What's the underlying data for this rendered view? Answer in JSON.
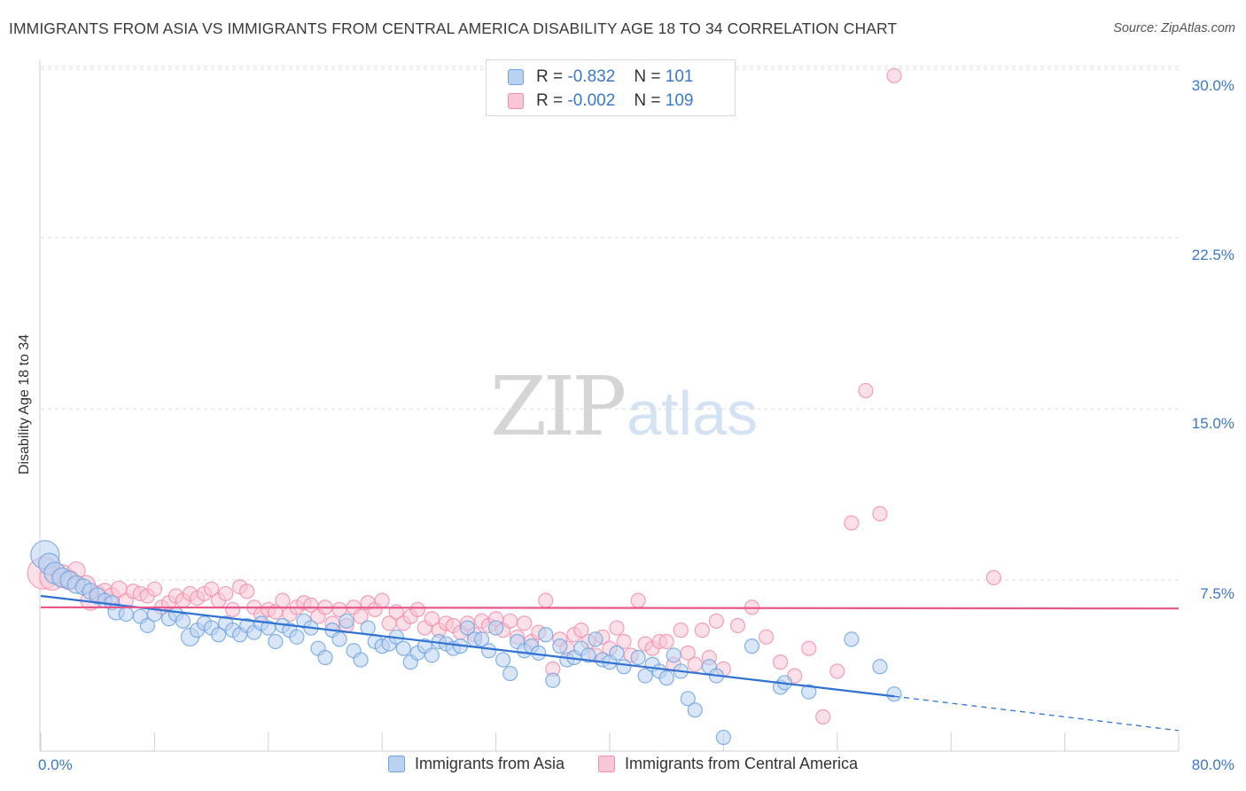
{
  "title": "IMMIGRANTS FROM ASIA VS IMMIGRANTS FROM CENTRAL AMERICA DISABILITY AGE 18 TO 34 CORRELATION CHART",
  "source": "Source: ZipAtlas.com",
  "watermark": {
    "zip": "ZIP",
    "atlas": "atlas"
  },
  "legend_box": {
    "rows": [
      {
        "r_label": "R = ",
        "r_value": "-0.832",
        "n_label": "N = ",
        "n_value": "101"
      },
      {
        "r_label": "R = ",
        "r_value": "-0.002",
        "n_label": "N = ",
        "n_value": "109"
      }
    ]
  },
  "bottom_legend": [
    "Immigrants from Asia",
    "Immigrants from Central America"
  ],
  "colors": {
    "blue": "#6fa3e0",
    "blue_fill": "#b9d2f1",
    "pink": "#f28ead",
    "pink_fill": "#f8c7d6",
    "blue_line": "#2f72d3",
    "pink_line": "#e8578a",
    "tick": "#3b78c8"
  },
  "chart_data": {
    "type": "scatter",
    "ylabel": "Disability Age 18 to 34",
    "xlim": [
      0,
      80
    ],
    "ylim": [
      0,
      31
    ],
    "x_tick_labels": [
      "0.0%",
      "80.0%"
    ],
    "y_ticks": [
      7.5,
      15.0,
      22.5,
      30.0
    ],
    "y_tick_labels": [
      "7.5%",
      "15.0%",
      "22.5%",
      "30.0%"
    ],
    "grid": true,
    "series": [
      {
        "name": "Immigrants from Asia",
        "r": -0.832,
        "n": 101,
        "trend": {
          "x0": 0,
          "y0": 6.8,
          "x1": 60,
          "y1": 2.4,
          "dash_to_x": 80,
          "dash_to_y": 0.9
        },
        "points": [
          [
            0.3,
            8.6,
            16
          ],
          [
            0.6,
            8.2,
            12
          ],
          [
            1.0,
            7.8,
            12
          ],
          [
            1.5,
            7.6,
            11
          ],
          [
            2.0,
            7.5,
            10
          ],
          [
            2.5,
            7.3,
            10
          ],
          [
            3.0,
            7.2,
            9
          ],
          [
            3.5,
            7.0,
            9
          ],
          [
            4.0,
            6.8,
            9
          ],
          [
            4.5,
            6.6,
            8
          ],
          [
            5.0,
            6.5,
            8
          ],
          [
            5.3,
            6.1,
            9
          ],
          [
            6.0,
            6.0,
            8
          ],
          [
            7.0,
            5.9,
            8
          ],
          [
            7.5,
            5.5,
            8
          ],
          [
            8.0,
            6.0,
            8
          ],
          [
            9.0,
            5.8,
            8
          ],
          [
            9.5,
            6.0,
            8
          ],
          [
            10.0,
            5.7,
            8
          ],
          [
            10.5,
            5.0,
            10
          ],
          [
            11.0,
            5.3,
            8
          ],
          [
            11.5,
            5.6,
            8
          ],
          [
            12.0,
            5.4,
            8
          ],
          [
            12.5,
            5.1,
            8
          ],
          [
            13.0,
            5.6,
            8
          ],
          [
            13.5,
            5.3,
            8
          ],
          [
            14.0,
            5.1,
            8
          ],
          [
            14.5,
            5.5,
            8
          ],
          [
            15.0,
            5.2,
            8
          ],
          [
            15.5,
            5.6,
            8
          ],
          [
            16.0,
            5.4,
            8
          ],
          [
            16.5,
            4.8,
            8
          ],
          [
            17.0,
            5.5,
            8
          ],
          [
            17.5,
            5.3,
            8
          ],
          [
            18.0,
            5.0,
            8
          ],
          [
            18.5,
            5.7,
            8
          ],
          [
            19.0,
            5.4,
            8
          ],
          [
            19.5,
            4.5,
            8
          ],
          [
            20.0,
            4.1,
            8
          ],
          [
            20.5,
            5.3,
            8
          ],
          [
            21.0,
            4.9,
            8
          ],
          [
            21.5,
            5.7,
            8
          ],
          [
            22.0,
            4.4,
            8
          ],
          [
            22.5,
            4.0,
            8
          ],
          [
            23.0,
            5.4,
            8
          ],
          [
            23.5,
            4.8,
            8
          ],
          [
            24.0,
            4.6,
            8
          ],
          [
            24.5,
            4.7,
            8
          ],
          [
            25.0,
            5.0,
            8
          ],
          [
            25.5,
            4.5,
            8
          ],
          [
            26.0,
            3.9,
            8
          ],
          [
            26.5,
            4.3,
            8
          ],
          [
            27.0,
            4.6,
            8
          ],
          [
            27.5,
            4.2,
            8
          ],
          [
            28.0,
            4.8,
            8
          ],
          [
            28.5,
            4.7,
            8
          ],
          [
            29.0,
            4.5,
            8
          ],
          [
            29.5,
            4.6,
            8
          ],
          [
            30.0,
            5.4,
            8
          ],
          [
            30.5,
            4.9,
            8
          ],
          [
            31.0,
            4.9,
            8
          ],
          [
            31.5,
            4.4,
            8
          ],
          [
            32.0,
            5.4,
            8
          ],
          [
            32.5,
            4.0,
            8
          ],
          [
            33.0,
            3.4,
            8
          ],
          [
            33.5,
            4.8,
            8
          ],
          [
            34.0,
            4.4,
            8
          ],
          [
            34.5,
            4.6,
            8
          ],
          [
            35.0,
            4.3,
            8
          ],
          [
            35.5,
            5.1,
            8
          ],
          [
            36.0,
            3.1,
            8
          ],
          [
            36.5,
            4.6,
            8
          ],
          [
            37.0,
            4.0,
            8
          ],
          [
            37.5,
            4.1,
            8
          ],
          [
            38.0,
            4.5,
            8
          ],
          [
            38.5,
            4.2,
            8
          ],
          [
            39.0,
            4.9,
            8
          ],
          [
            39.5,
            4.0,
            8
          ],
          [
            40.0,
            3.9,
            8
          ],
          [
            40.5,
            4.3,
            8
          ],
          [
            41.0,
            3.7,
            8
          ],
          [
            42.0,
            4.1,
            8
          ],
          [
            42.5,
            3.3,
            8
          ],
          [
            43.0,
            3.8,
            8
          ],
          [
            43.5,
            3.5,
            8
          ],
          [
            44.0,
            3.2,
            8
          ],
          [
            44.5,
            4.2,
            8
          ],
          [
            45.0,
            3.5,
            8
          ],
          [
            45.5,
            2.3,
            8
          ],
          [
            46.0,
            1.8,
            8
          ],
          [
            47.0,
            3.7,
            8
          ],
          [
            47.5,
            3.3,
            8
          ],
          [
            48.0,
            0.6,
            8
          ],
          [
            50.0,
            4.6,
            8
          ],
          [
            52.0,
            2.8,
            8
          ],
          [
            52.3,
            3.0,
            8
          ],
          [
            54.0,
            2.6,
            8
          ],
          [
            57.0,
            4.9,
            8
          ],
          [
            59.0,
            3.7,
            8
          ],
          [
            60.0,
            2.5,
            8
          ]
        ]
      },
      {
        "name": "Immigrants from Central America",
        "r": -0.002,
        "n": 109,
        "trend": {
          "x0": 0,
          "y0": 6.3,
          "x1": 80,
          "y1": 6.25
        },
        "points": [
          [
            0.2,
            7.8,
            18
          ],
          [
            0.8,
            7.6,
            14
          ],
          [
            1.5,
            7.7,
            12
          ],
          [
            2.0,
            7.5,
            11
          ],
          [
            2.5,
            7.9,
            10
          ],
          [
            3.2,
            7.3,
            10
          ],
          [
            3.5,
            6.6,
            11
          ],
          [
            4.0,
            6.9,
            9
          ],
          [
            4.5,
            7.0,
            9
          ],
          [
            5.0,
            6.8,
            9
          ],
          [
            5.5,
            7.1,
            9
          ],
          [
            6.0,
            6.6,
            8
          ],
          [
            6.5,
            7.0,
            8
          ],
          [
            7.0,
            6.9,
            8
          ],
          [
            7.5,
            6.8,
            8
          ],
          [
            8.0,
            7.1,
            8
          ],
          [
            8.5,
            6.3,
            8
          ],
          [
            9.0,
            6.5,
            8
          ],
          [
            9.5,
            6.8,
            8
          ],
          [
            10.0,
            6.6,
            8
          ],
          [
            10.5,
            6.9,
            8
          ],
          [
            11.0,
            6.7,
            8
          ],
          [
            11.5,
            6.9,
            8
          ],
          [
            12.0,
            7.1,
            8
          ],
          [
            12.5,
            6.6,
            8
          ],
          [
            13.0,
            6.9,
            8
          ],
          [
            13.5,
            6.2,
            8
          ],
          [
            14.0,
            7.2,
            8
          ],
          [
            14.5,
            7.0,
            8
          ],
          [
            15.0,
            6.3,
            8
          ],
          [
            15.5,
            6.0,
            8
          ],
          [
            16.0,
            6.2,
            8
          ],
          [
            16.5,
            6.1,
            8
          ],
          [
            17.0,
            6.6,
            8
          ],
          [
            17.5,
            6.0,
            8
          ],
          [
            18.0,
            6.3,
            8
          ],
          [
            18.5,
            6.5,
            8
          ],
          [
            19.0,
            6.4,
            8
          ],
          [
            19.5,
            5.9,
            8
          ],
          [
            20.0,
            6.3,
            8
          ],
          [
            20.5,
            5.6,
            8
          ],
          [
            21.0,
            6.2,
            8
          ],
          [
            21.5,
            5.5,
            8
          ],
          [
            22.0,
            6.3,
            8
          ],
          [
            22.5,
            5.9,
            8
          ],
          [
            23.0,
            6.5,
            8
          ],
          [
            23.5,
            6.2,
            8
          ],
          [
            24.0,
            6.6,
            8
          ],
          [
            24.5,
            5.6,
            8
          ],
          [
            25.0,
            6.1,
            8
          ],
          [
            25.5,
            5.6,
            8
          ],
          [
            26.0,
            5.9,
            8
          ],
          [
            26.5,
            6.2,
            8
          ],
          [
            27.0,
            5.4,
            8
          ],
          [
            27.5,
            5.8,
            8
          ],
          [
            28.0,
            5.3,
            8
          ],
          [
            28.5,
            5.6,
            8
          ],
          [
            29.0,
            5.5,
            8
          ],
          [
            29.5,
            5.2,
            8
          ],
          [
            30.0,
            5.6,
            8
          ],
          [
            30.5,
            5.1,
            8
          ],
          [
            31.0,
            5.7,
            8
          ],
          [
            31.5,
            5.5,
            8
          ],
          [
            32.0,
            5.8,
            8
          ],
          [
            32.5,
            5.3,
            8
          ],
          [
            33.0,
            5.7,
            8
          ],
          [
            33.5,
            5.0,
            8
          ],
          [
            34.0,
            5.6,
            8
          ],
          [
            34.5,
            4.8,
            8
          ],
          [
            35.0,
            5.2,
            8
          ],
          [
            35.5,
            6.6,
            8
          ],
          [
            36.0,
            3.6,
            8
          ],
          [
            36.5,
            4.9,
            8
          ],
          [
            37.0,
            4.5,
            8
          ],
          [
            37.5,
            5.1,
            8
          ],
          [
            38.0,
            5.3,
            8
          ],
          [
            38.5,
            4.8,
            8
          ],
          [
            39.0,
            4.2,
            8
          ],
          [
            39.5,
            5.0,
            8
          ],
          [
            40.0,
            4.5,
            8
          ],
          [
            40.5,
            5.4,
            8
          ],
          [
            41.0,
            4.8,
            8
          ],
          [
            41.5,
            4.2,
            8
          ],
          [
            42.0,
            6.6,
            8
          ],
          [
            42.5,
            4.7,
            8
          ],
          [
            43.0,
            4.5,
            8
          ],
          [
            43.5,
            4.8,
            8
          ],
          [
            44.0,
            4.8,
            8
          ],
          [
            44.5,
            3.8,
            8
          ],
          [
            45.0,
            5.3,
            8
          ],
          [
            45.5,
            4.3,
            8
          ],
          [
            46.0,
            3.8,
            8
          ],
          [
            46.5,
            5.3,
            8
          ],
          [
            47.0,
            4.1,
            8
          ],
          [
            47.5,
            5.7,
            8
          ],
          [
            48.0,
            3.6,
            8
          ],
          [
            49.0,
            5.5,
            8
          ],
          [
            50.0,
            6.3,
            8
          ],
          [
            51.0,
            5.0,
            8
          ],
          [
            52.0,
            3.9,
            8
          ],
          [
            53.0,
            3.3,
            8
          ],
          [
            54.0,
            4.5,
            8
          ],
          [
            55.0,
            1.5,
            8
          ],
          [
            56.0,
            3.5,
            8
          ],
          [
            57.0,
            10.0,
            8
          ],
          [
            58.0,
            15.8,
            8
          ],
          [
            59.0,
            10.4,
            8
          ],
          [
            60.0,
            29.6,
            8
          ],
          [
            67.0,
            7.6,
            8
          ]
        ]
      }
    ]
  }
}
